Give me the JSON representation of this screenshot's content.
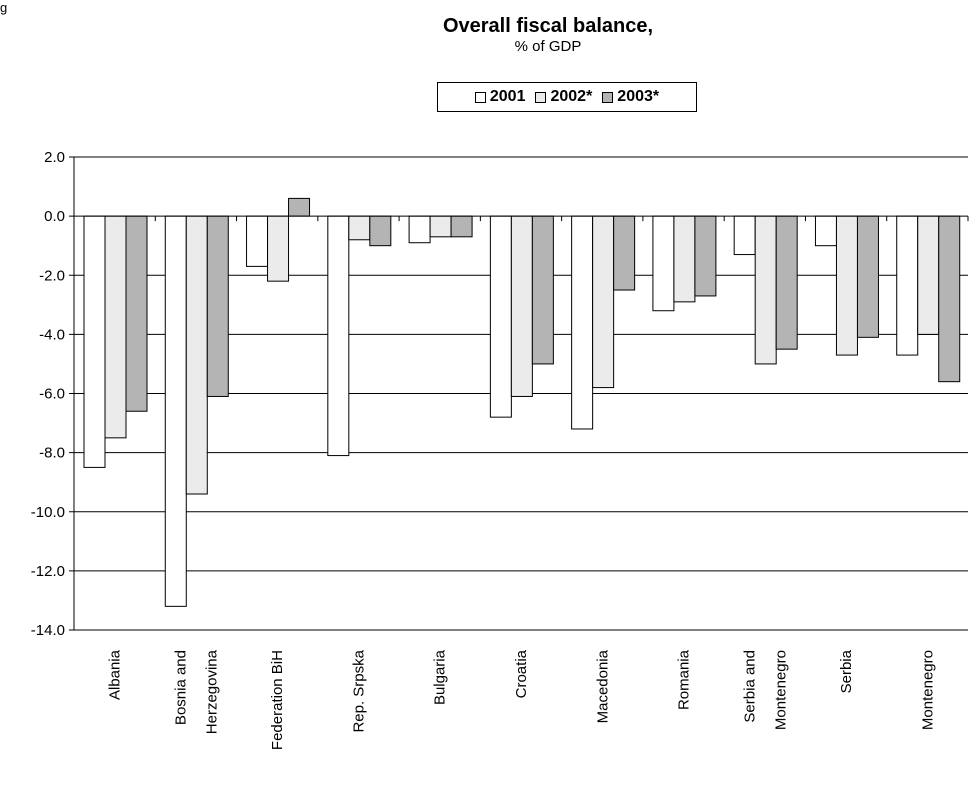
{
  "page": {
    "corner_text": "g"
  },
  "chart_data": {
    "type": "bar",
    "title": "Overall fiscal balance,",
    "subtitle": "% of GDP",
    "xlabel": "",
    "ylabel": "",
    "ylim": [
      -14,
      2
    ],
    "yticks": [
      "2.0",
      "0.0",
      "-2.0",
      "-4.0",
      "-6.0",
      "-8.0",
      "-10.0",
      "-12.0",
      "-14.0"
    ],
    "grid": true,
    "legend_position": "top-center",
    "categories": [
      [
        "Albania"
      ],
      [
        "Bosnia and",
        "Herzegovina"
      ],
      [
        "Federation BiH"
      ],
      [
        "Rep. Srpska"
      ],
      [
        "Bulgaria"
      ],
      [
        "Croatia"
      ],
      [
        "Macedonia"
      ],
      [
        "Romania"
      ],
      [
        "Serbia and",
        "Montenegro"
      ],
      [
        "Serbia"
      ],
      [
        "Montenegro"
      ]
    ],
    "series": [
      {
        "name": "2001",
        "color": "#ffffff",
        "values": [
          -8.5,
          -13.2,
          -1.7,
          -8.1,
          -0.9,
          -6.8,
          -7.2,
          -3.2,
          -1.3,
          -1.0,
          -4.7
        ]
      },
      {
        "name": "2002*",
        "color": "#ebebeb",
        "values": [
          -7.5,
          -9.4,
          -2.2,
          -0.8,
          -0.7,
          -6.1,
          -5.8,
          -2.9,
          -5.0,
          -4.7,
          -4.0
        ]
      },
      {
        "name": "2003*",
        "color": "#b4b4b4",
        "values": [
          -6.6,
          -6.1,
          0.6,
          -1.0,
          -0.7,
          -5.0,
          -2.5,
          -2.7,
          -4.5,
          -4.1,
          -5.6
        ]
      }
    ]
  }
}
